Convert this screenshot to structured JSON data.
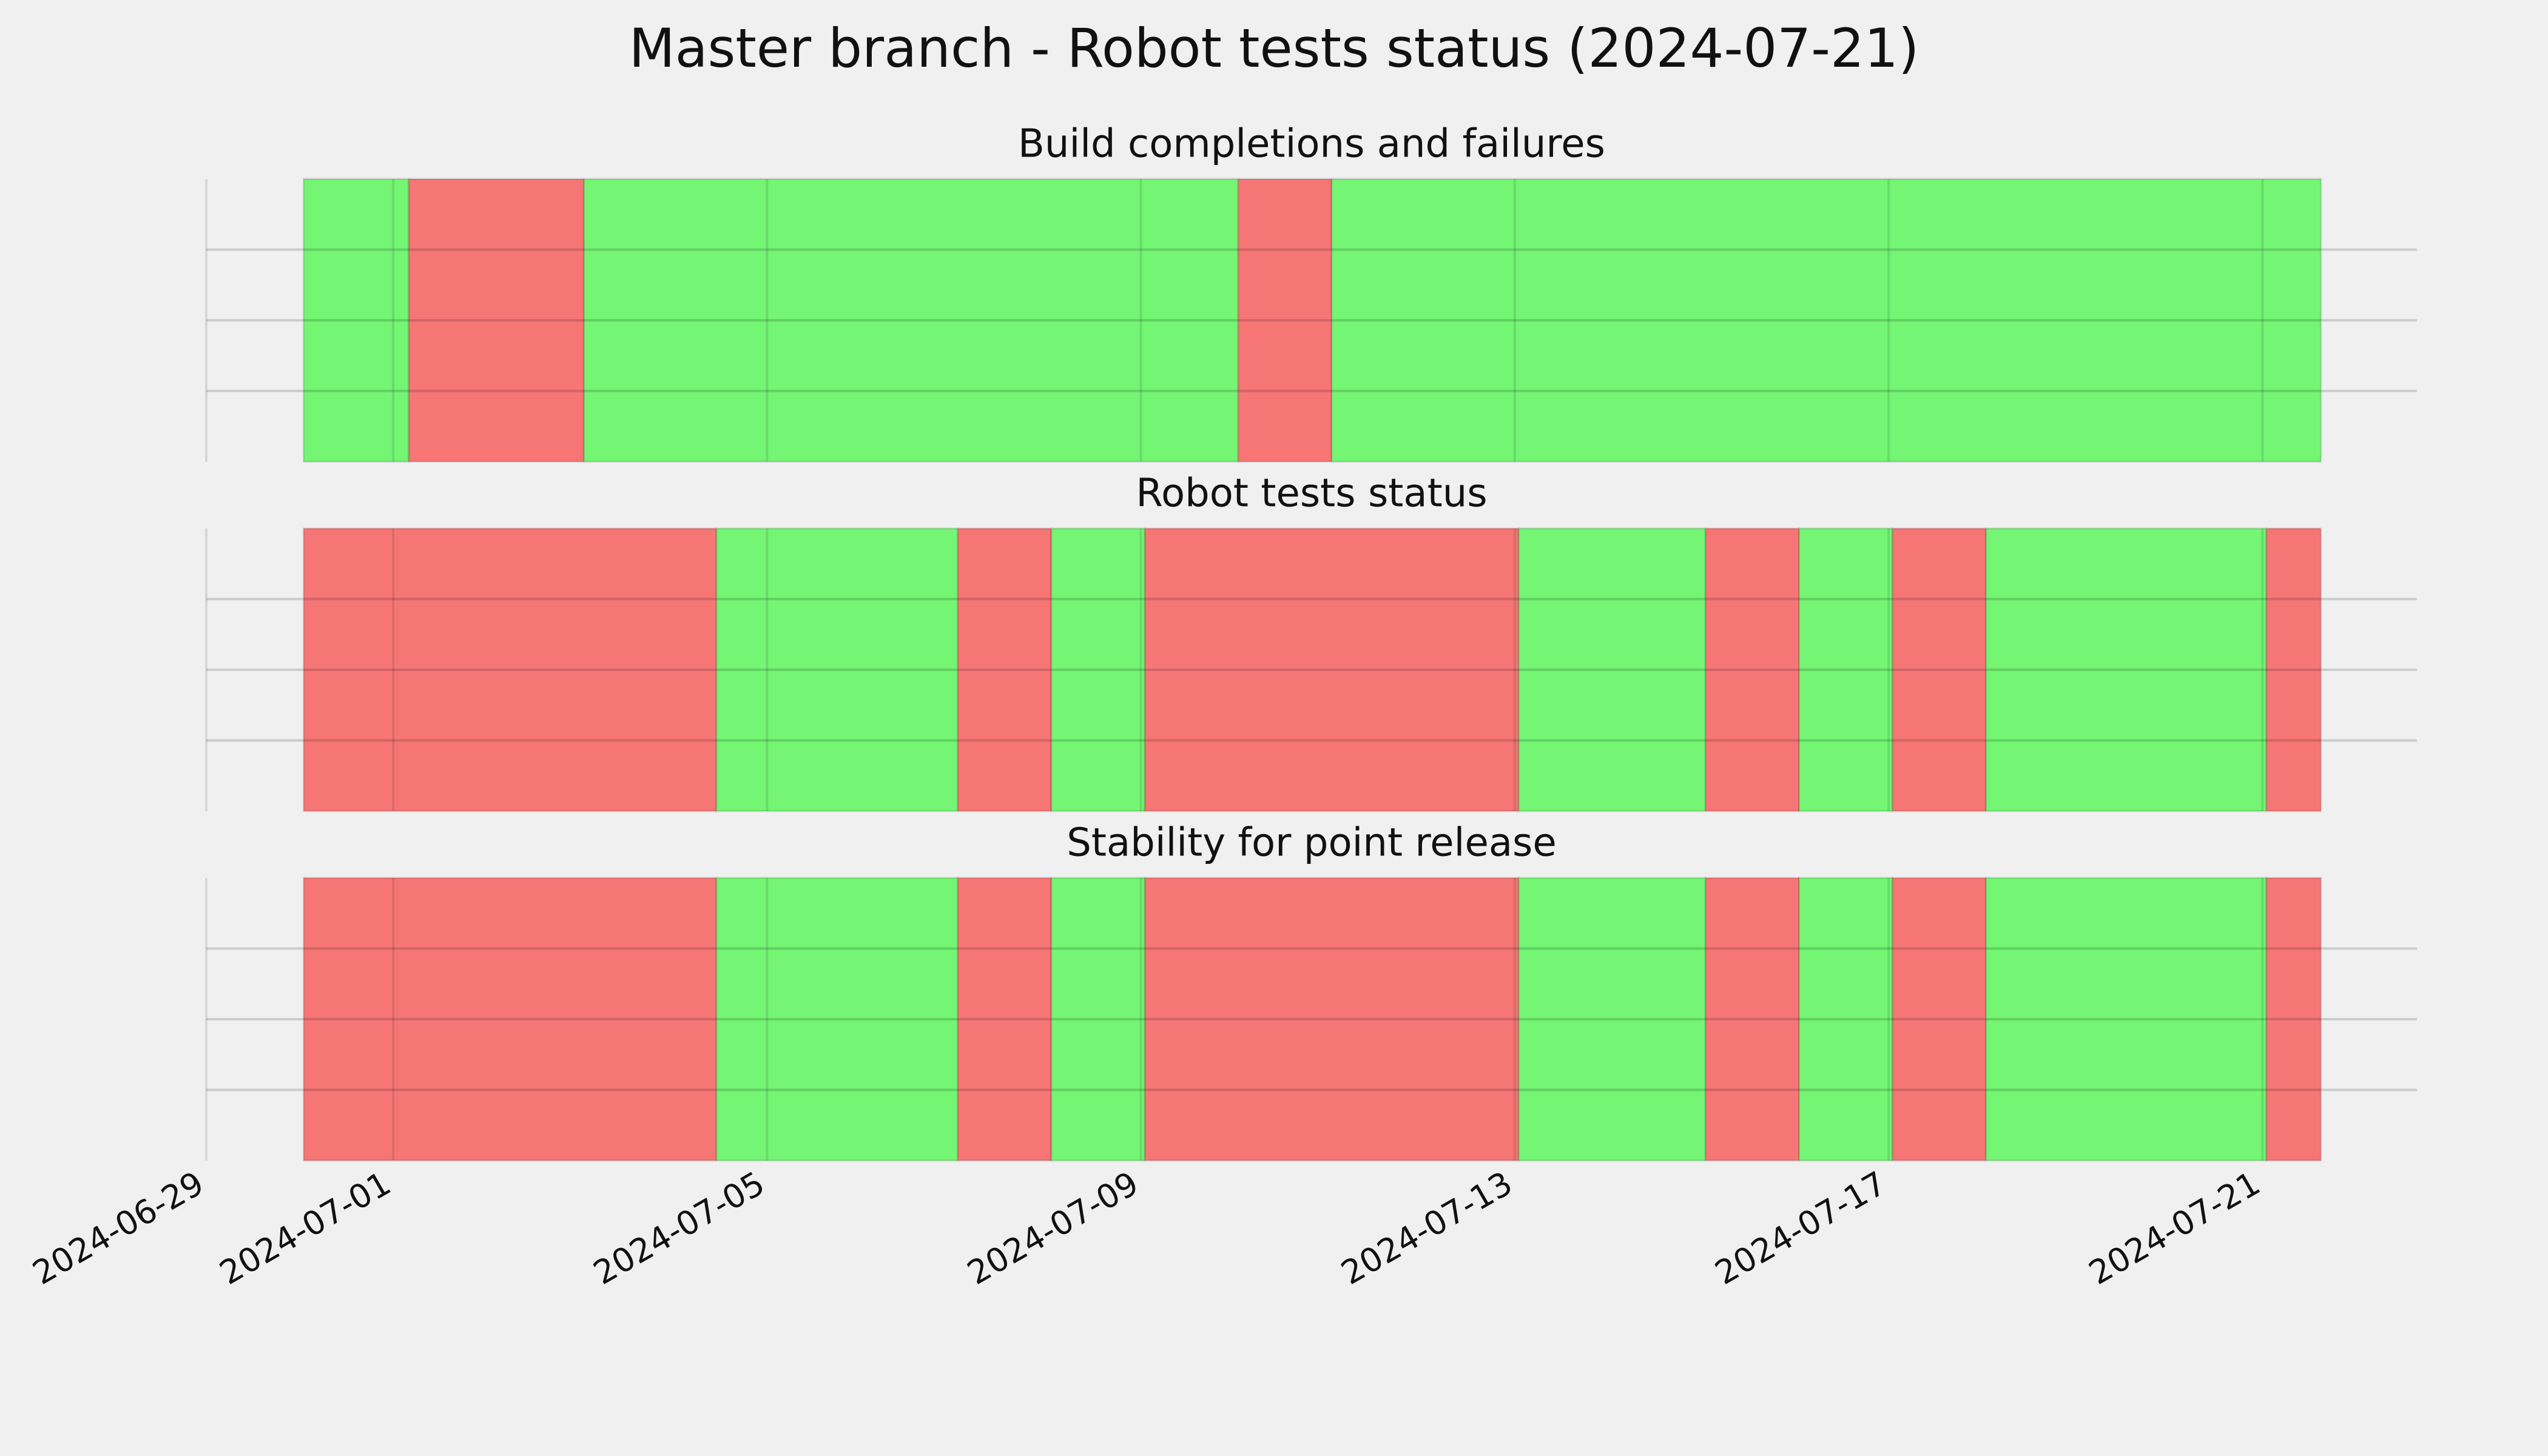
{
  "chart_data": {
    "type": "timeline",
    "title": "Master branch - Robot tests status (2024-07-21)",
    "xlim": [
      "2024-06-29T00:00",
      "2024-07-22T15:40"
    ],
    "xticks": [
      "2024-06-29",
      "2024-07-01",
      "2024-07-05",
      "2024-07-09",
      "2024-07-13",
      "2024-07-17",
      "2024-07-21"
    ],
    "ylim": [
      0,
      1
    ],
    "yticks": [
      0.25,
      0.5,
      0.75
    ],
    "grid": true,
    "panels": [
      {
        "title": "Build completions and failures",
        "segments": [
          {
            "start": "2024-06-30T01:00",
            "end": "2024-07-01T04:00",
            "color": "#74f574"
          },
          {
            "start": "2024-07-01T04:00",
            "end": "2024-07-03T01:00",
            "color": "#f67676"
          },
          {
            "start": "2024-07-03T01:00",
            "end": "2024-07-10T01:00",
            "color": "#74f574"
          },
          {
            "start": "2024-07-10T01:00",
            "end": "2024-07-11T01:00",
            "color": "#f67676"
          },
          {
            "start": "2024-07-11T01:00",
            "end": "2024-07-21T15:00",
            "color": "#74f574"
          }
        ]
      },
      {
        "title": "Robot tests status",
        "segments": [
          {
            "start": "2024-06-30T01:00",
            "end": "2024-07-04T11:00",
            "color": "#f67676"
          },
          {
            "start": "2024-07-04T11:00",
            "end": "2024-07-07T01:00",
            "color": "#74f574"
          },
          {
            "start": "2024-07-07T01:00",
            "end": "2024-07-08T01:00",
            "color": "#f67676"
          },
          {
            "start": "2024-07-08T01:00",
            "end": "2024-07-09T01:00",
            "color": "#74f574"
          },
          {
            "start": "2024-07-09T01:00",
            "end": "2024-07-13T01:00",
            "color": "#f67676"
          },
          {
            "start": "2024-07-13T01:00",
            "end": "2024-07-15T01:00",
            "color": "#74f574"
          },
          {
            "start": "2024-07-15T01:00",
            "end": "2024-07-16T01:00",
            "color": "#f67676"
          },
          {
            "start": "2024-07-16T01:00",
            "end": "2024-07-17T01:00",
            "color": "#74f574"
          },
          {
            "start": "2024-07-17T01:00",
            "end": "2024-07-18T01:00",
            "color": "#f67676"
          },
          {
            "start": "2024-07-18T01:00",
            "end": "2024-07-21T01:00",
            "color": "#74f574"
          },
          {
            "start": "2024-07-21T01:00",
            "end": "2024-07-21T15:00",
            "color": "#f67676"
          }
        ]
      },
      {
        "title": "Stability for point release",
        "segments": [
          {
            "start": "2024-06-30T01:00",
            "end": "2024-07-04T11:00",
            "color": "#f67676"
          },
          {
            "start": "2024-07-04T11:00",
            "end": "2024-07-07T01:00",
            "color": "#74f574"
          },
          {
            "start": "2024-07-07T01:00",
            "end": "2024-07-08T01:00",
            "color": "#f67676"
          },
          {
            "start": "2024-07-08T01:00",
            "end": "2024-07-09T01:00",
            "color": "#74f574"
          },
          {
            "start": "2024-07-09T01:00",
            "end": "2024-07-13T01:00",
            "color": "#f67676"
          },
          {
            "start": "2024-07-13T01:00",
            "end": "2024-07-15T01:00",
            "color": "#74f574"
          },
          {
            "start": "2024-07-15T01:00",
            "end": "2024-07-16T01:00",
            "color": "#f67676"
          },
          {
            "start": "2024-07-16T01:00",
            "end": "2024-07-17T01:00",
            "color": "#74f574"
          },
          {
            "start": "2024-07-17T01:00",
            "end": "2024-07-18T01:00",
            "color": "#f67676"
          },
          {
            "start": "2024-07-18T01:00",
            "end": "2024-07-21T01:00",
            "color": "#74f574"
          },
          {
            "start": "2024-07-21T01:00",
            "end": "2024-07-21T15:00",
            "color": "#f67676"
          }
        ]
      }
    ]
  }
}
